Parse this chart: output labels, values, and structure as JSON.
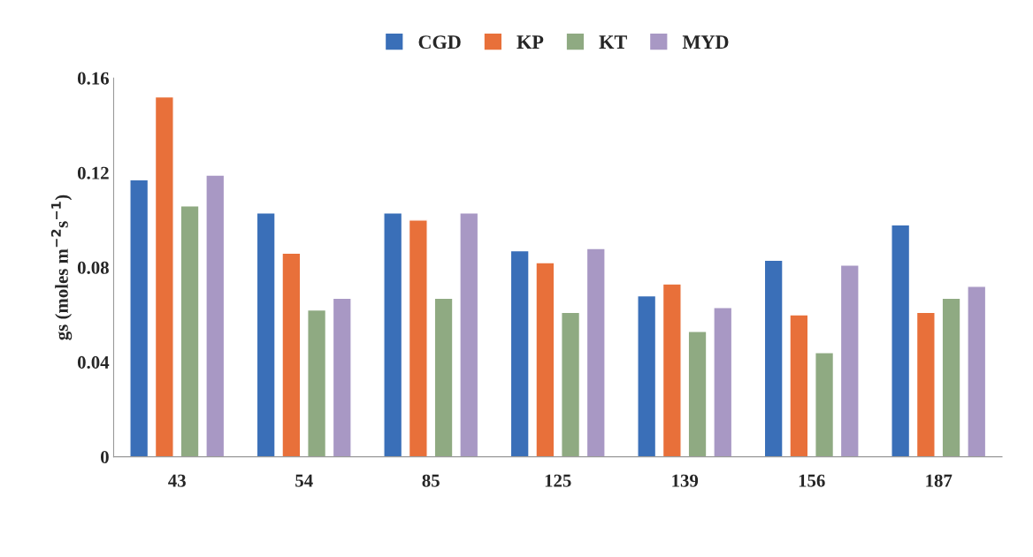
{
  "chart_data": {
    "type": "bar",
    "ylabel": "gs (moles m$^{−2}$s$^{−1}$)",
    "categories": [
      "43",
      "54",
      "85",
      "125",
      "139",
      "156",
      "187"
    ],
    "series": [
      {
        "name": "CGD",
        "color": "#3a6fb8",
        "values": [
          0.117,
          0.103,
          0.103,
          0.087,
          0.068,
          0.083,
          0.098
        ]
      },
      {
        "name": "KP",
        "color": "#e8703a",
        "values": [
          0.152,
          0.086,
          0.1,
          0.082,
          0.073,
          0.06,
          0.061
        ]
      },
      {
        "name": "KT",
        "color": "#8faa82",
        "values": [
          0.106,
          0.062,
          0.067,
          0.061,
          0.053,
          0.044,
          0.067
        ]
      },
      {
        "name": "MYD",
        "color": "#a898c4",
        "values": [
          0.119,
          0.067,
          0.103,
          0.088,
          0.063,
          0.081,
          0.072
        ]
      }
    ],
    "ylim": [
      0,
      0.16
    ],
    "yticks": [
      0,
      0.04,
      0.08,
      0.12,
      0.16
    ],
    "grid": false,
    "legend": "top"
  }
}
